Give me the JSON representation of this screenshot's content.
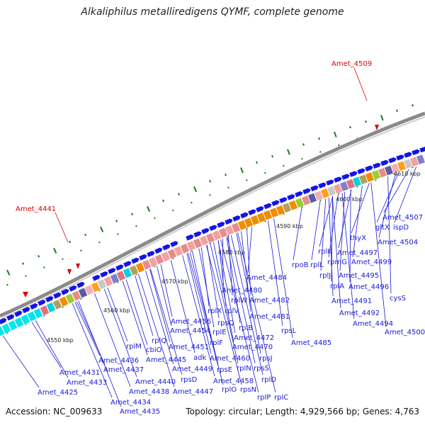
{
  "title": "Alkaliphilus metalliredigens QYMF, complete genome",
  "accession": "Accession: NC_009633",
  "topology": "Topology: circular; Length: 4,929,566 bp; Genes: 4,763",
  "colors": {
    "gene_blue": "#1414e6",
    "label_blue": "#1a1ad6",
    "highlight_red": "#dd0000",
    "tick_green": "#1a7a1a",
    "backbone_gray": "#8a8a8a"
  },
  "kbp_ticks": [
    "4550 kbp",
    "4560 kbp",
    "4570 kbp",
    "4580 kbp",
    "4590 kbp",
    "4600 kbp",
    "4610 kbp"
  ],
  "highlighted_genes": [
    "Amet_4441",
    "Amet_4509"
  ],
  "gene_labels": [
    "Amet_4425",
    "Amet_4431",
    "Amet_4433",
    "Amet_4434",
    "Amet_4435",
    "Amet_4436",
    "Amet_4437",
    "Amet_4438",
    "rplM",
    "cbiO",
    "rplQ",
    "Amet_4440",
    "Amet_4445",
    "Amet_4447",
    "rpsD",
    "Amet_4449",
    "adk",
    "Amet_4451",
    "Amet_4454",
    "Amet_4456",
    "rplX",
    "rplE",
    "rplF",
    "rpsE",
    "rplO",
    "Amet_4458",
    "rpsQ",
    "rplV",
    "rplW",
    "rplB",
    "rplN",
    "rpsN",
    "Amet_4460",
    "Amet_4470",
    "Amet_4472",
    "Amet_4480",
    "Amet_4481",
    "Amet_4482",
    "Amet_4484",
    "rpsS",
    "rpsJ",
    "rplD",
    "rplC",
    "rplP",
    "rpsL",
    "Amet_4485",
    "rpoB",
    "rplL",
    "rplK",
    "rplJ",
    "rplA",
    "rpmG",
    "Amet_4491",
    "Amet_4492",
    "Amet_4494",
    "Amet_4495",
    "Amet_4496",
    "Amet_4497",
    "Amet_4499",
    "Amet_4500",
    "thyX",
    "gltX",
    "ispD",
    "Amet_4504",
    "Amet_4507",
    "cysS"
  ]
}
